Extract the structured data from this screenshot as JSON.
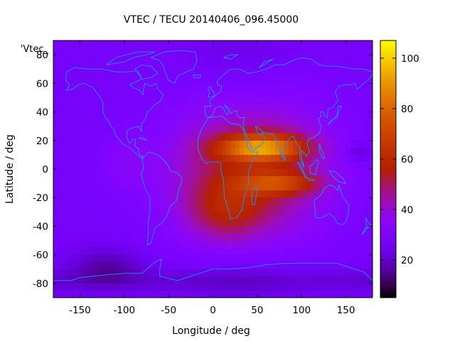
{
  "chart_data": {
    "type": "heatmap",
    "title": "VTEC / TECU 20140406_096.45000",
    "xlabel": "Longitude / deg",
    "ylabel": "Latitude / deg",
    "xlim": [
      -180,
      180
    ],
    "ylim": [
      -90,
      90
    ],
    "x_ticks": [
      "-150",
      "-100",
      "-50",
      "0",
      "50",
      "100",
      "150"
    ],
    "y_ticks": [
      "-80",
      "-60",
      "-40",
      "-20",
      "0",
      "20",
      "40",
      "60",
      "80"
    ],
    "legend_key": "'Vtec_",
    "colorbar": {
      "range": [
        5,
        107
      ],
      "ticks": [
        "20",
        "40",
        "60",
        "80",
        "100"
      ],
      "colormap": "gnuplot",
      "placement": "right"
    },
    "overlay": "coastlines",
    "coastline_color": "#1e90ff",
    "features": {
      "background_level_TECU": 27,
      "peak_TECU": 105,
      "subsolar_longitude_deg": 30,
      "anomaly_crest_latitudes_deg": [
        15,
        -10
      ]
    }
  }
}
